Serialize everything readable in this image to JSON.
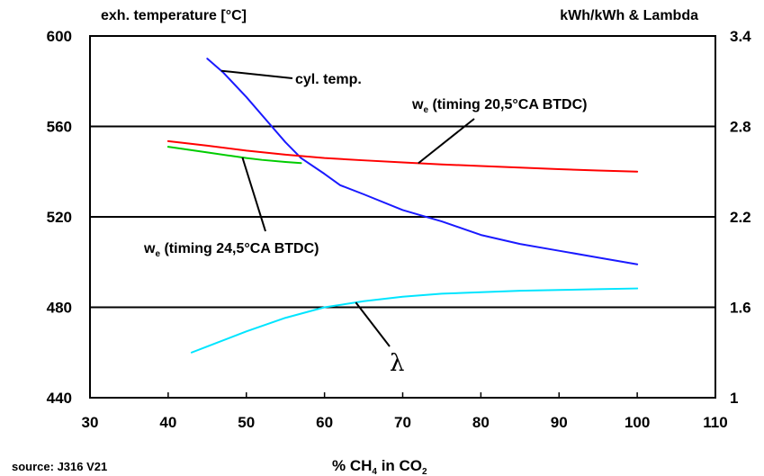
{
  "chart_data": {
    "type": "line",
    "left_axis_title": "exh. temperature [°C]",
    "right_axis_title": "kWh/kWh & Lambda",
    "xlabel": {
      "base": "% CH",
      "sub1": "4",
      "mid": " in CO",
      "sub2": "2"
    },
    "source": "source: J316 V21",
    "xlim": [
      30,
      110
    ],
    "x_ticks": [
      30,
      40,
      50,
      60,
      70,
      80,
      90,
      100,
      110
    ],
    "y_left_lim": [
      440,
      600
    ],
    "y_left_ticks": [
      440,
      480,
      520,
      560,
      600
    ],
    "y_right_lim": [
      1,
      3.4
    ],
    "y_right_ticks": [
      "1",
      "1.6",
      "2.2",
      "2.8",
      "3.4"
    ],
    "grid_y": [
      480,
      520,
      560
    ],
    "series": [
      {
        "key": "cyl",
        "color": "#1a1aff",
        "axis": "left",
        "x": [
          45,
          47,
          50,
          53,
          55,
          57,
          60,
          62,
          65,
          70,
          75,
          80,
          85,
          90,
          95,
          100
        ],
        "y": [
          590,
          584,
          573,
          561,
          553,
          546,
          539,
          534,
          530,
          523,
          518,
          512,
          508,
          505,
          502,
          499
        ]
      },
      {
        "key": "we205",
        "color": "#ff0000",
        "axis": "left",
        "x": [
          40,
          45,
          50,
          55,
          60,
          65,
          70,
          75,
          80,
          85,
          90,
          95,
          100
        ],
        "y": [
          553.5,
          551.5,
          549.3,
          547.5,
          546,
          545,
          544.1,
          543.2,
          542.5,
          541.8,
          541.1,
          540.5,
          540
        ]
      },
      {
        "key": "we245",
        "color": "#00cc00",
        "axis": "left",
        "x": [
          40,
          42,
          45,
          48,
          50,
          52,
          55,
          57
        ],
        "y": [
          551,
          550,
          548.5,
          547,
          546,
          545.2,
          544.3,
          543.8
        ]
      },
      {
        "key": "lambda",
        "color": "#00e5ff",
        "axis": "right",
        "x": [
          43,
          45,
          50,
          55,
          60,
          65,
          70,
          75,
          80,
          85,
          90,
          95,
          100
        ],
        "y": [
          1.3,
          1.34,
          1.44,
          1.53,
          1.6,
          1.64,
          1.67,
          1.69,
          1.7,
          1.71,
          1.715,
          1.72,
          1.725
        ]
      }
    ],
    "annotations": [
      {
        "key": "cyl",
        "text": "cyl. temp."
      },
      {
        "key": "we205",
        "base": "w",
        "sub": "e",
        "text": " (timing 20,5°CA BTDC)"
      },
      {
        "key": "we245",
        "base": "w",
        "sub": "e",
        "text": " (timing 24,5°CA BTDC)"
      },
      {
        "key": "lambda",
        "text": "λ"
      }
    ]
  }
}
